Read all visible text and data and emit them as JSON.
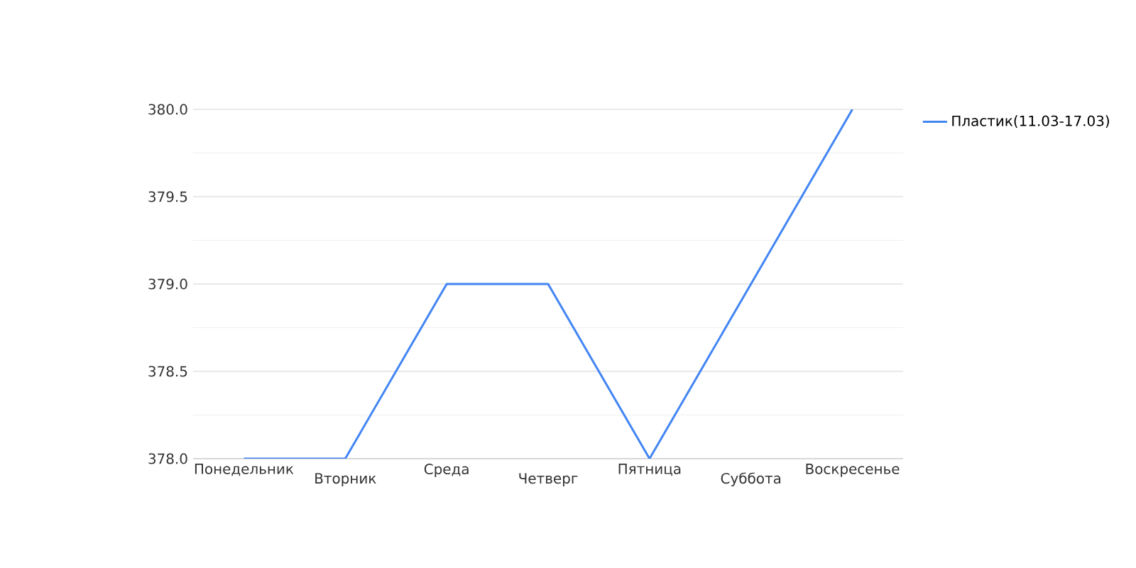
{
  "chart_data": {
    "type": "line",
    "categories": [
      "Понедельник",
      "Вторник",
      "Среда",
      "Четверг",
      "Пятница",
      "Суббота",
      "Воскресенье"
    ],
    "series": [
      {
        "name": "Пластик(11.03-17.03)",
        "color": "#4285f4",
        "values": [
          378,
          378,
          379,
          379,
          378,
          379,
          380
        ]
      }
    ],
    "ylim": [
      378,
      380
    ],
    "yticks": [
      {
        "value": 378,
        "label": "378.0"
      },
      {
        "value": 378.25,
        "label": null
      },
      {
        "value": 378.5,
        "label": "378.5"
      },
      {
        "value": 378.75,
        "label": null
      },
      {
        "value": 379,
        "label": "379.0"
      },
      {
        "value": 379.25,
        "label": null
      },
      {
        "value": 379.5,
        "label": "379.5"
      },
      {
        "value": 379.75,
        "label": null
      },
      {
        "value": 380,
        "label": "380.0"
      }
    ],
    "grid": "y",
    "legend": "top right",
    "marker": "none",
    "line_style": "solid"
  }
}
